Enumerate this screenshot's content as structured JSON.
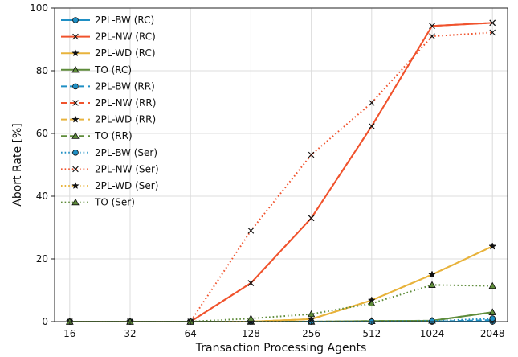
{
  "chart_data": {
    "type": "line",
    "title": "",
    "xlabel": "Transaction Processing Agents",
    "ylabel": "Abort Rate [%]",
    "x": [
      "16",
      "32",
      "64",
      "128",
      "256",
      "512",
      "1024",
      "2048"
    ],
    "x_scale": "log2-categorical",
    "ylim": [
      0,
      100
    ],
    "yticks": [
      0,
      20,
      40,
      60,
      80,
      100
    ],
    "grid": true,
    "legend_position": "top-left",
    "series": [
      {
        "name": "2PL-BW (RC)",
        "color": "#1f8fc4",
        "linestyle": "solid",
        "marker": "circle",
        "values": [
          0,
          0,
          0,
          0,
          0,
          0,
          0,
          0
        ]
      },
      {
        "name": "2PL-NW (RC)",
        "color": "#f0532d",
        "linestyle": "solid",
        "marker": "x",
        "values": [
          0,
          0,
          0,
          12.3,
          33,
          62.3,
          94.3,
          95.3
        ]
      },
      {
        "name": "2PL-WD (RC)",
        "color": "#e8b33c",
        "linestyle": "solid",
        "marker": "star",
        "values": [
          0,
          0,
          0,
          0,
          0.8,
          6.8,
          15,
          24
        ]
      },
      {
        "name": "TO (RC)",
        "color": "#5e8c3a",
        "linestyle": "solid",
        "marker": "triangle",
        "values": [
          0,
          0,
          0,
          0,
          0,
          0.2,
          0.3,
          3
        ]
      },
      {
        "name": "2PL-BW (RR)",
        "color": "#1f8fc4",
        "linestyle": "dashed",
        "marker": "circle",
        "values": [
          0,
          0,
          0,
          0,
          0,
          0,
          0,
          0.5
        ]
      },
      {
        "name": "2PL-NW (RR)",
        "color": "#f0532d",
        "linestyle": "dashed",
        "marker": "x",
        "values": [
          0,
          0,
          0,
          12.3,
          33,
          62.3,
          94.3,
          95.3
        ]
      },
      {
        "name": "2PL-WD (RR)",
        "color": "#e8b33c",
        "linestyle": "dashed",
        "marker": "star",
        "values": [
          0,
          0,
          0,
          0,
          0.8,
          6.8,
          15,
          24
        ]
      },
      {
        "name": "TO (RR)",
        "color": "#5e8c3a",
        "linestyle": "dashed",
        "marker": "triangle",
        "values": [
          0,
          0,
          0,
          0,
          0,
          0.2,
          0.3,
          3
        ]
      },
      {
        "name": "2PL-BW (Ser)",
        "color": "#1f8fc4",
        "linestyle": "dotted",
        "marker": "circle",
        "values": [
          0,
          0,
          0,
          0,
          0,
          0,
          0.2,
          1
        ]
      },
      {
        "name": "2PL-NW (Ser)",
        "color": "#f0532d",
        "linestyle": "dotted",
        "marker": "x",
        "values": [
          0,
          0,
          0,
          29,
          53.2,
          69.8,
          91,
          92.2
        ]
      },
      {
        "name": "2PL-WD (Ser)",
        "color": "#e8b33c",
        "linestyle": "dotted",
        "marker": "star",
        "values": [
          0,
          0,
          0,
          0,
          0.8,
          6.8,
          15,
          24
        ]
      },
      {
        "name": "TO (Ser)",
        "color": "#5e8c3a",
        "linestyle": "dotted",
        "marker": "triangle",
        "values": [
          0,
          0,
          0,
          1,
          2.4,
          5.8,
          11.7,
          11.4
        ]
      }
    ]
  }
}
